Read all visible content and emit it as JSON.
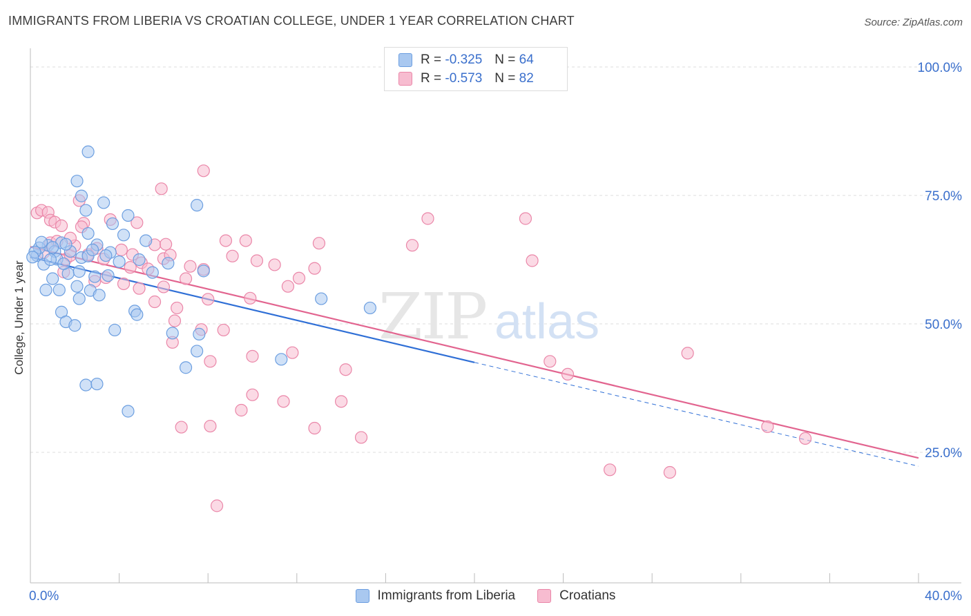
{
  "header": {
    "title": "IMMIGRANTS FROM LIBERIA VS CROATIAN COLLEGE, UNDER 1 YEAR CORRELATION CHART",
    "source": "Source: ZipAtlas.com"
  },
  "stats": [
    {
      "r_label": "R =",
      "r_value": "-0.325",
      "n_label": "N =",
      "n_value": "64"
    },
    {
      "r_label": "R =",
      "r_value": "-0.573",
      "n_label": "N =",
      "n_value": "82"
    }
  ],
  "watermark": {
    "zip": "ZIP",
    "atlas": "atlas"
  },
  "colors": {
    "blue_fill": "#a9c8f0",
    "blue_stroke": "#6b9ee0",
    "blue_line": "#2f6fd6",
    "pink_fill": "#f7bcd0",
    "pink_stroke": "#ea86a8",
    "pink_line": "#e2648f",
    "tick_label": "#3a6fcc",
    "grid": "#dddddd"
  },
  "chart_data": {
    "type": "scatter",
    "title": "IMMIGRANTS FROM LIBERIA VS CROATIAN COLLEGE, UNDER 1 YEAR CORRELATION CHART",
    "xlabel": "",
    "ylabel": "College, Under 1 year",
    "xlim": [
      0,
      40
    ],
    "ylim": [
      0,
      105
    ],
    "x_tick_labels": [
      "0.0%",
      "40.0%"
    ],
    "y_ticks": [
      25,
      50,
      75,
      100
    ],
    "y_tick_labels": [
      "25.0%",
      "50.0%",
      "75.0%",
      "100.0%"
    ],
    "grid": true,
    "legend_position": "bottom-center",
    "series": [
      {
        "name": "Immigrants from Liberia",
        "r": -0.325,
        "n": 64,
        "trend": {
          "x": [
            0,
            20
          ],
          "y": [
            63.0,
            42.5
          ],
          "dashed_to": [
            40,
            22.3
          ]
        },
        "points": [
          [
            0.3,
            63.3
          ],
          [
            0.6,
            61.6
          ],
          [
            0.8,
            65.3
          ],
          [
            1.1,
            64.1
          ],
          [
            1.4,
            65.8
          ],
          [
            1.2,
            62.6
          ],
          [
            0.4,
            64.8
          ],
          [
            1.0,
            58.8
          ],
          [
            1.7,
            59.8
          ],
          [
            2.3,
            62.9
          ],
          [
            2.6,
            63.2
          ],
          [
            0.7,
            56.6
          ],
          [
            1.3,
            56.6
          ],
          [
            2.1,
            57.3
          ],
          [
            2.7,
            56.5
          ],
          [
            3.1,
            55.6
          ],
          [
            1.4,
            52.3
          ],
          [
            1.6,
            50.4
          ],
          [
            2.0,
            49.7
          ],
          [
            2.2,
            54.9
          ],
          [
            3.8,
            48.8
          ],
          [
            4.7,
            52.5
          ],
          [
            4.8,
            51.8
          ],
          [
            2.5,
            72.1
          ],
          [
            3.3,
            73.6
          ],
          [
            2.3,
            74.9
          ],
          [
            3.7,
            69.5
          ],
          [
            4.4,
            71.1
          ],
          [
            4.2,
            67.3
          ],
          [
            5.2,
            66.2
          ],
          [
            2.6,
            67.6
          ],
          [
            3.0,
            65.4
          ],
          [
            3.6,
            63.9
          ],
          [
            4.0,
            62.1
          ],
          [
            5.5,
            60.0
          ],
          [
            6.2,
            61.8
          ],
          [
            7.8,
            60.3
          ],
          [
            2.9,
            59.2
          ],
          [
            3.5,
            59.4
          ],
          [
            6.4,
            48.2
          ],
          [
            7.6,
            48.0
          ],
          [
            7.5,
            44.7
          ],
          [
            7.0,
            41.5
          ],
          [
            11.3,
            43.1
          ],
          [
            13.1,
            54.9
          ],
          [
            15.3,
            53.1
          ],
          [
            2.1,
            77.8
          ],
          [
            2.6,
            83.5
          ],
          [
            7.5,
            73.1
          ],
          [
            2.5,
            38.1
          ],
          [
            3.0,
            38.3
          ],
          [
            4.4,
            33.0
          ],
          [
            0.2,
            64.0
          ],
          [
            0.1,
            63.0
          ],
          [
            1.8,
            64.1
          ],
          [
            0.9,
            62.5
          ],
          [
            2.2,
            60.2
          ],
          [
            1.6,
            65.5
          ],
          [
            2.8,
            64.4
          ],
          [
            3.4,
            63.3
          ],
          [
            0.5,
            65.9
          ],
          [
            1.0,
            64.9
          ],
          [
            4.9,
            62.5
          ],
          [
            1.5,
            61.7
          ]
        ]
      },
      {
        "name": "Croatians",
        "r": -0.573,
        "n": 82,
        "trend": {
          "x": [
            0,
            40
          ],
          "y": [
            65.0,
            23.9
          ]
        },
        "points": [
          [
            0.3,
            71.6
          ],
          [
            0.5,
            72.1
          ],
          [
            0.8,
            71.7
          ],
          [
            0.9,
            70.2
          ],
          [
            1.1,
            69.8
          ],
          [
            1.4,
            69.1
          ],
          [
            0.6,
            63.9
          ],
          [
            0.9,
            65.8
          ],
          [
            1.2,
            66.1
          ],
          [
            1.6,
            62.6
          ],
          [
            1.8,
            63.3
          ],
          [
            2.0,
            65.2
          ],
          [
            2.6,
            63.5
          ],
          [
            3.0,
            64.7
          ],
          [
            3.3,
            62.6
          ],
          [
            2.2,
            74.0
          ],
          [
            2.4,
            69.6
          ],
          [
            3.6,
            70.3
          ],
          [
            4.8,
            69.7
          ],
          [
            5.9,
            76.3
          ],
          [
            7.8,
            79.8
          ],
          [
            1.8,
            66.7
          ],
          [
            2.3,
            68.9
          ],
          [
            4.1,
            64.4
          ],
          [
            4.6,
            63.5
          ],
          [
            5.6,
            65.4
          ],
          [
            6.1,
            65.5
          ],
          [
            5.0,
            61.9
          ],
          [
            5.3,
            60.7
          ],
          [
            6.0,
            62.7
          ],
          [
            6.3,
            63.4
          ],
          [
            7.2,
            61.2
          ],
          [
            7.8,
            60.6
          ],
          [
            8.8,
            66.2
          ],
          [
            9.7,
            66.2
          ],
          [
            10.2,
            62.3
          ],
          [
            11.0,
            61.5
          ],
          [
            12.1,
            58.9
          ],
          [
            12.8,
            60.8
          ],
          [
            13.0,
            65.7
          ],
          [
            3.4,
            59.0
          ],
          [
            4.2,
            57.8
          ],
          [
            4.9,
            56.9
          ],
          [
            5.6,
            54.3
          ],
          [
            6.0,
            57.2
          ],
          [
            6.6,
            53.1
          ],
          [
            7.0,
            58.8
          ],
          [
            8.0,
            54.8
          ],
          [
            9.1,
            63.2
          ],
          [
            9.9,
            55.0
          ],
          [
            6.5,
            50.6
          ],
          [
            7.7,
            48.9
          ],
          [
            8.7,
            48.8
          ],
          [
            6.4,
            46.4
          ],
          [
            8.1,
            42.7
          ],
          [
            10.0,
            43.7
          ],
          [
            11.8,
            44.4
          ],
          [
            14.2,
            41.1
          ],
          [
            17.2,
            65.3
          ],
          [
            17.9,
            70.5
          ],
          [
            22.3,
            70.5
          ],
          [
            22.6,
            62.3
          ],
          [
            23.4,
            42.7
          ],
          [
            24.2,
            40.2
          ],
          [
            29.6,
            44.3
          ],
          [
            6.8,
            29.9
          ],
          [
            8.1,
            30.1
          ],
          [
            9.5,
            33.2
          ],
          [
            11.4,
            34.9
          ],
          [
            12.8,
            29.7
          ],
          [
            14.0,
            34.9
          ],
          [
            14.9,
            27.9
          ],
          [
            26.1,
            21.6
          ],
          [
            28.8,
            21.1
          ],
          [
            33.2,
            30.0
          ],
          [
            34.9,
            27.7
          ],
          [
            8.4,
            14.6
          ],
          [
            11.6,
            57.3
          ],
          [
            2.9,
            58.3
          ],
          [
            1.5,
            60.1
          ],
          [
            4.5,
            61.0
          ],
          [
            10.0,
            36.2
          ]
        ]
      }
    ]
  },
  "legend": {
    "items": [
      {
        "label": "Immigrants from Liberia"
      },
      {
        "label": "Croatians"
      }
    ]
  },
  "axis": {
    "ylabel": "College, Under 1 year",
    "x_min_label": "0.0%",
    "x_max_label": "40.0%",
    "y_labels": [
      "25.0%",
      "50.0%",
      "75.0%",
      "100.0%"
    ]
  }
}
